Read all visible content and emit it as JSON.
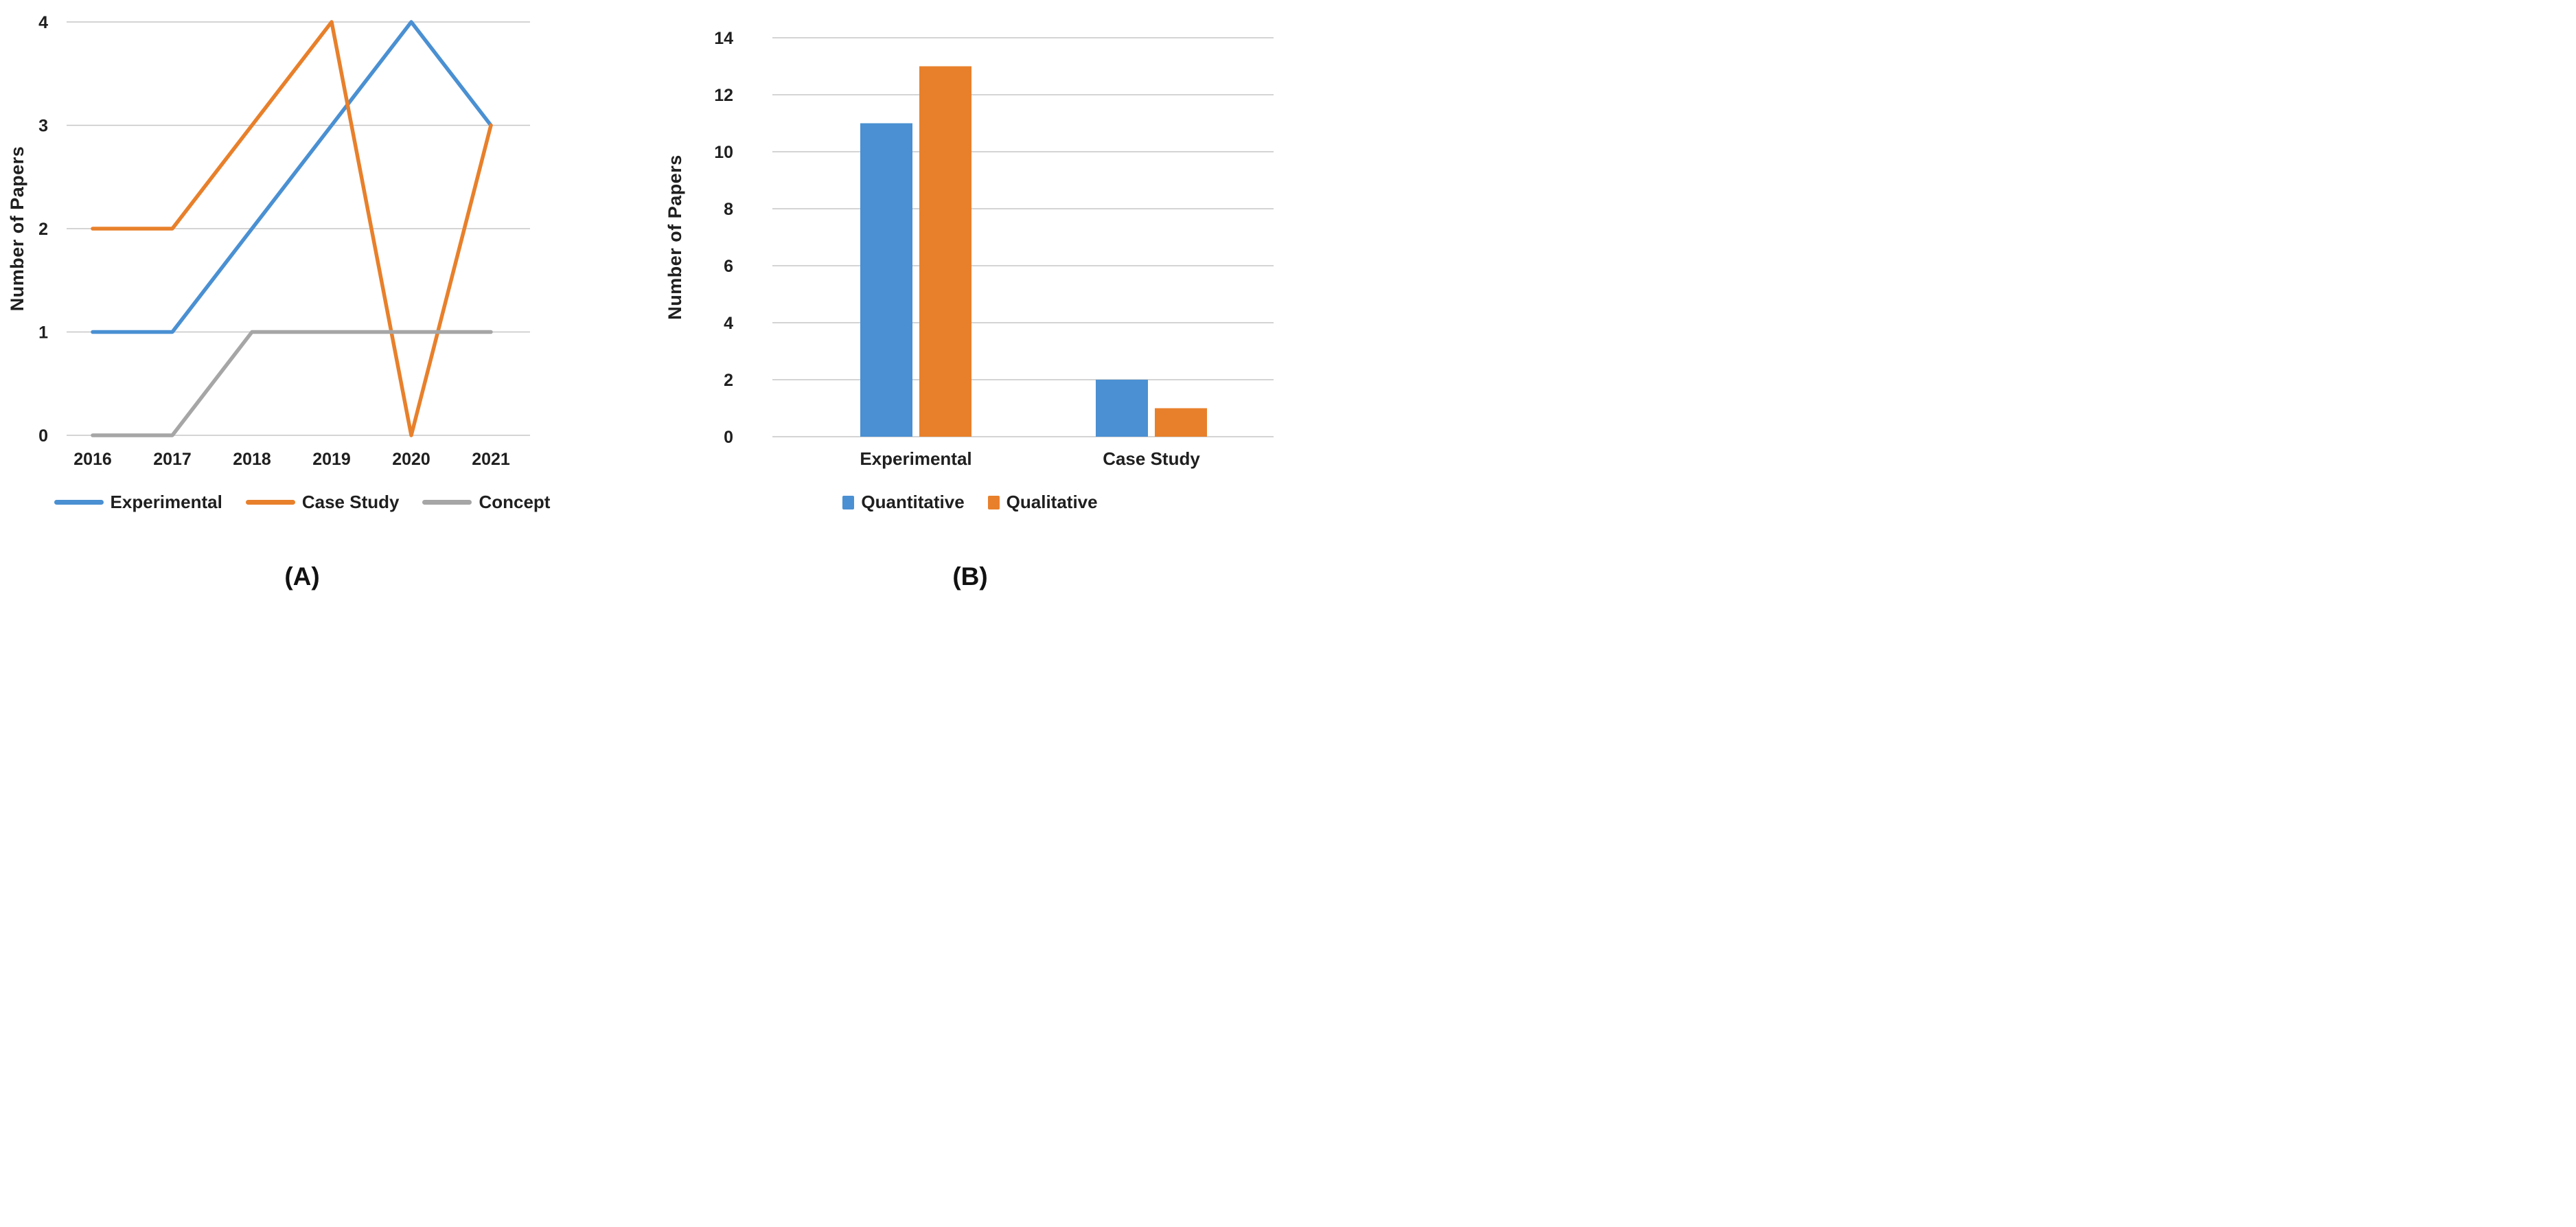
{
  "figure": {
    "background": "#ffffff",
    "text_color": "#1f1f1f",
    "panels": [
      {
        "label": "(A)"
      },
      {
        "label": "(B)"
      }
    ]
  },
  "chart_data": [
    {
      "type": "line",
      "title": "",
      "xlabel": "",
      "ylabel": "Number of Papers",
      "x": [
        "2016",
        "2017",
        "2018",
        "2019",
        "2020",
        "2021"
      ],
      "series": [
        {
          "name": "Experimental",
          "color": "#4A90D2",
          "values": [
            1,
            1,
            2,
            3,
            4,
            3
          ]
        },
        {
          "name": "Case Study",
          "color": "#E8802B",
          "values": [
            2,
            2,
            3,
            4,
            0,
            3
          ]
        },
        {
          "name": "Concept",
          "color": "#A6A6A6",
          "values": [
            0,
            0,
            1,
            1,
            1,
            1
          ]
        }
      ],
      "ylim": [
        0,
        4
      ],
      "yticks": [
        0,
        1,
        2,
        3,
        4
      ],
      "grid": true,
      "grid_color": "#c6c6c6",
      "legend_position": "bottom"
    },
    {
      "type": "bar",
      "title": "",
      "xlabel": "",
      "ylabel": "Number of Papers",
      "categories": [
        "Experimental",
        "Case Study"
      ],
      "series": [
        {
          "name": "Quantitative",
          "color": "#4A90D2",
          "values": [
            11,
            2
          ]
        },
        {
          "name": "Qualitative",
          "color": "#E8802B",
          "values": [
            13,
            1
          ]
        }
      ],
      "ylim": [
        0,
        14
      ],
      "yticks": [
        0,
        2,
        4,
        6,
        8,
        10,
        12,
        14
      ],
      "grid": true,
      "grid_color": "#c6c6c6",
      "legend_position": "bottom"
    }
  ]
}
